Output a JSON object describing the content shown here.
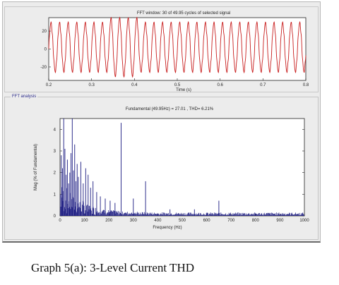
{
  "group_label": "FFT analysis",
  "caption": "Graph 5(a): 3-Level Current THD",
  "colors": {
    "signal": "#c81e1e",
    "spectrum": "#1a1a80",
    "axis": "#222222"
  },
  "chart_data": [
    {
      "type": "line",
      "title": "FFT window: 30 of 49.95 cycles of selected signal",
      "xlabel": "Time (s)",
      "ylabel": "",
      "xlim": [
        0.2,
        0.8
      ],
      "ylim": [
        -35,
        35
      ],
      "x_ticks": [
        0.2,
        0.3,
        0.4,
        0.5,
        0.6,
        0.7,
        0.8
      ],
      "x_tick_labels": [
        "0.2",
        "0.3",
        "0.4",
        "0.5",
        "0.6",
        "0.7",
        "0.8"
      ],
      "y_ticks": [
        20,
        0,
        -20
      ],
      "y_tick_labels": [
        "20",
        "0",
        "-20"
      ],
      "series": [
        {
          "frequency_hz": 49.95,
          "amplitude": 27.01,
          "amplitude_peak_region": [
            0.34,
            0.41,
            32
          ],
          "offset": 2
        }
      ]
    },
    {
      "type": "bar",
      "title": "Fundamental (49.95Hz) = 27.01 , THD= 6.21%",
      "xlabel": "Frequency (Hz)",
      "ylabel": "Mag (% of Fundamental)",
      "xlim": [
        0,
        1000
      ],
      "ylim": [
        0,
        4.5
      ],
      "x_ticks": [
        0,
        100,
        200,
        300,
        400,
        500,
        600,
        700,
        800,
        900,
        1000
      ],
      "x_tick_labels": [
        "0",
        "100",
        "200",
        "300",
        "400",
        "500",
        "600",
        "700",
        "800",
        "900",
        "1000"
      ],
      "y_ticks": [
        0,
        1,
        2,
        3,
        4
      ],
      "y_tick_labels": [
        "0",
        "1",
        "2",
        "3",
        "4"
      ],
      "harmonics": [
        {
          "x": 5,
          "value": 2.8
        },
        {
          "x": 10,
          "value": 2.2
        },
        {
          "x": 15,
          "value": 4.5
        },
        {
          "x": 20,
          "value": 3.1
        },
        {
          "x": 25,
          "value": 1.9
        },
        {
          "x": 30,
          "value": 2.6
        },
        {
          "x": 35,
          "value": 1.5
        },
        {
          "x": 40,
          "value": 2.0
        },
        {
          "x": 45,
          "value": 2.9
        },
        {
          "x": 50,
          "value": 4.5
        },
        {
          "x": 55,
          "value": 2.1
        },
        {
          "x": 60,
          "value": 3.3
        },
        {
          "x": 65,
          "value": 1.6
        },
        {
          "x": 70,
          "value": 2.4
        },
        {
          "x": 75,
          "value": 1.8
        },
        {
          "x": 85,
          "value": 2.5
        },
        {
          "x": 95,
          "value": 1.5
        },
        {
          "x": 105,
          "value": 2.2
        },
        {
          "x": 115,
          "value": 1.9
        },
        {
          "x": 125,
          "value": 1.3
        },
        {
          "x": 135,
          "value": 1.6
        },
        {
          "x": 150,
          "value": 1.1
        },
        {
          "x": 165,
          "value": 0.9
        },
        {
          "x": 185,
          "value": 0.8
        },
        {
          "x": 205,
          "value": 0.7
        },
        {
          "x": 225,
          "value": 0.6
        },
        {
          "x": 250,
          "value": 4.3
        },
        {
          "x": 300,
          "value": 0.8
        },
        {
          "x": 350,
          "value": 1.6
        },
        {
          "x": 450,
          "value": 0.3
        },
        {
          "x": 550,
          "value": 0.3
        },
        {
          "x": 650,
          "value": 0.7
        }
      ],
      "noise_floor": 0.12
    }
  ]
}
